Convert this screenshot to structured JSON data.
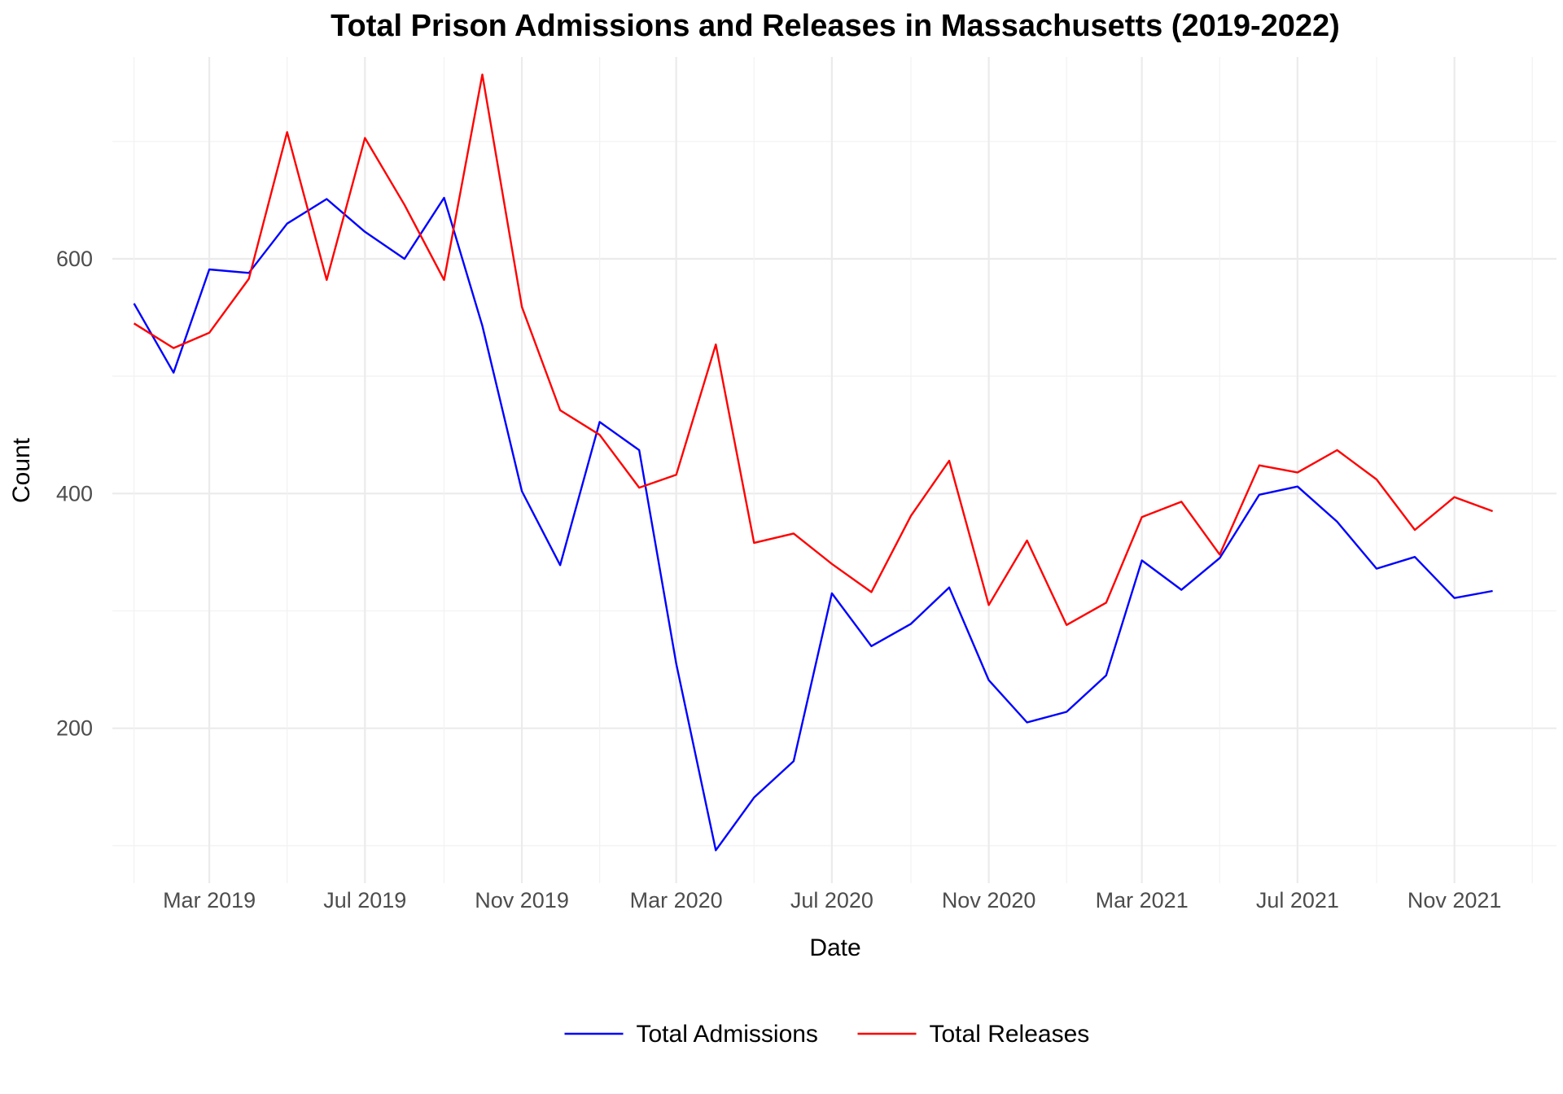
{
  "chart_data": {
    "type": "line",
    "title": "Total Prison Admissions and Releases in Massachusetts (2019-2022)",
    "xlabel": "Date",
    "ylabel": "Count",
    "x_range": [
      "2018-12-15",
      "2022-01-20"
    ],
    "ylim": [
      68,
      772
    ],
    "yticks": [
      200,
      400,
      600
    ],
    "xticks": [
      {
        "date": "2019-03-01",
        "label": "Mar 2019"
      },
      {
        "date": "2019-07-01",
        "label": "Jul 2019"
      },
      {
        "date": "2019-11-01",
        "label": "Nov 2019"
      },
      {
        "date": "2020-03-01",
        "label": "Mar 2020"
      },
      {
        "date": "2020-07-01",
        "label": "Jul 2020"
      },
      {
        "date": "2020-11-01",
        "label": "Nov 2020"
      },
      {
        "date": "2021-03-01",
        "label": "Mar 2021"
      },
      {
        "date": "2021-07-01",
        "label": "Jul 2021"
      },
      {
        "date": "2021-11-01",
        "label": "Nov 2021"
      }
    ],
    "grid": true,
    "legend_position": "bottom",
    "x": [
      "2019-01-01",
      "2019-02-01",
      "2019-03-01",
      "2019-04-01",
      "2019-05-01",
      "2019-06-01",
      "2019-07-01",
      "2019-08-01",
      "2019-09-01",
      "2019-10-01",
      "2019-11-01",
      "2019-12-01",
      "2020-01-01",
      "2020-02-01",
      "2020-03-01",
      "2020-04-01",
      "2020-05-01",
      "2020-06-01",
      "2020-07-01",
      "2020-08-01",
      "2020-09-01",
      "2020-10-01",
      "2020-11-01",
      "2020-12-01",
      "2021-01-01",
      "2021-02-01",
      "2021-03-01",
      "2021-04-01",
      "2021-05-01",
      "2021-06-01",
      "2021-07-01",
      "2021-08-01",
      "2021-09-01",
      "2021-10-01",
      "2021-11-01",
      "2021-12-01"
    ],
    "series": [
      {
        "name": "Total Admissions",
        "color": "#0000ff",
        "values": [
          562,
          503,
          591,
          588,
          630,
          651,
          623,
          600,
          652,
          543,
          402,
          339,
          461,
          437,
          255,
          96,
          141,
          172,
          315,
          270,
          289,
          320,
          241,
          205,
          214,
          245,
          343,
          318,
          345,
          399,
          406,
          376,
          336,
          346,
          311,
          317
        ]
      },
      {
        "name": "Total Releases",
        "color": "#ff0000",
        "values": [
          545,
          524,
          537,
          583,
          708,
          582,
          703,
          646,
          582,
          757,
          559,
          471,
          450,
          405,
          416,
          527,
          358,
          366,
          340,
          316,
          381,
          428,
          305,
          360,
          288,
          307,
          380,
          393,
          348,
          424,
          418,
          437,
          412,
          369,
          397,
          385
        ]
      }
    ]
  }
}
